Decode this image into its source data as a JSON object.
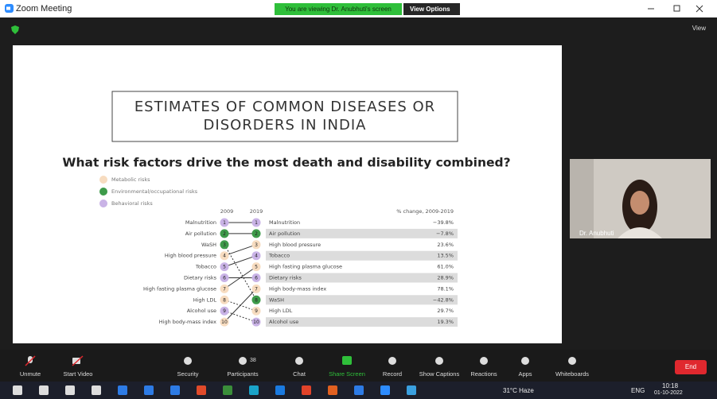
{
  "window": {
    "title": "Zoom Meeting",
    "banner": "You are viewing Dr. Anubhuti's screen",
    "view_options": "View Options",
    "view": "View"
  },
  "slide": {
    "title_lines": [
      "ESTIMATES OF COMMON DISEASES OR",
      "DISORDERS IN INDIA"
    ],
    "chart": {
      "heading": "What risk factors drive the most death and disability combined?",
      "legend": [
        {
          "name": "Metabolic risks",
          "color": "#f7dcc0"
        },
        {
          "name": "Environmental/occupational risks",
          "color": "#3e9b4a"
        },
        {
          "name": "Behavioral risks",
          "color": "#c9b3e6"
        }
      ],
      "col_2009": "2009",
      "col_2019": "2019",
      "change_header": "% change, 2009-2019",
      "left": [
        {
          "label": "Malnutrition",
          "rank": 1,
          "color": "#c9b3e6"
        },
        {
          "label": "Air pollution",
          "rank": 2,
          "color": "#3e9b4a"
        },
        {
          "label": "WaSH",
          "rank": 3,
          "color": "#3e9b4a"
        },
        {
          "label": "High blood pressure",
          "rank": 4,
          "color": "#f7dcc0"
        },
        {
          "label": "Tobacco",
          "rank": 5,
          "color": "#c9b3e6"
        },
        {
          "label": "Dietary risks",
          "rank": 6,
          "color": "#c9b3e6"
        },
        {
          "label": "High fasting plasma glucose",
          "rank": 7,
          "color": "#f7dcc0"
        },
        {
          "label": "High LDL",
          "rank": 8,
          "color": "#f7dcc0"
        },
        {
          "label": "Alcohol use",
          "rank": 9,
          "color": "#c9b3e6"
        },
        {
          "label": "High body-mass index",
          "rank": 10,
          "color": "#f7dcc0"
        }
      ],
      "right": [
        {
          "rank": 1,
          "label": "Malnutrition",
          "change": "−39.8%",
          "color": "#c9b3e6"
        },
        {
          "rank": 2,
          "label": "Air pollution",
          "change": "−7.8%",
          "color": "#3e9b4a"
        },
        {
          "rank": 3,
          "label": "High blood pressure",
          "change": "23.6%",
          "color": "#f7dcc0"
        },
        {
          "rank": 4,
          "label": "Tobacco",
          "change": "13.5%",
          "color": "#c9b3e6"
        },
        {
          "rank": 5,
          "label": "High fasting plasma glucose",
          "change": "61.0%",
          "color": "#f7dcc0"
        },
        {
          "rank": 6,
          "label": "Dietary risks",
          "change": "28.9%",
          "color": "#c9b3e6"
        },
        {
          "rank": 7,
          "label": "High body-mass index",
          "change": "78.1%",
          "color": "#f7dcc0"
        },
        {
          "rank": 8,
          "label": "WaSH",
          "change": "−42.8%",
          "color": "#3e9b4a"
        },
        {
          "rank": 9,
          "label": "High LDL",
          "change": "29.7%",
          "color": "#f7dcc0"
        },
        {
          "rank": 10,
          "label": "Alcohol use",
          "change": "19.3%",
          "color": "#c9b3e6"
        }
      ]
    }
  },
  "video": {
    "name": "Dr. Anubhuti"
  },
  "toolbar": {
    "items": [
      "Unmute",
      "Start Video",
      "Security",
      "Participants",
      "Chat",
      "Share Screen",
      "Record",
      "Show Captions",
      "Reactions",
      "Apps",
      "Whiteboards"
    ],
    "participants_count": 38,
    "end": "End"
  },
  "taskbar": {
    "weather": "31°C Haze",
    "language": "ENG",
    "time": "10:18",
    "date": "01-10-2022"
  }
}
